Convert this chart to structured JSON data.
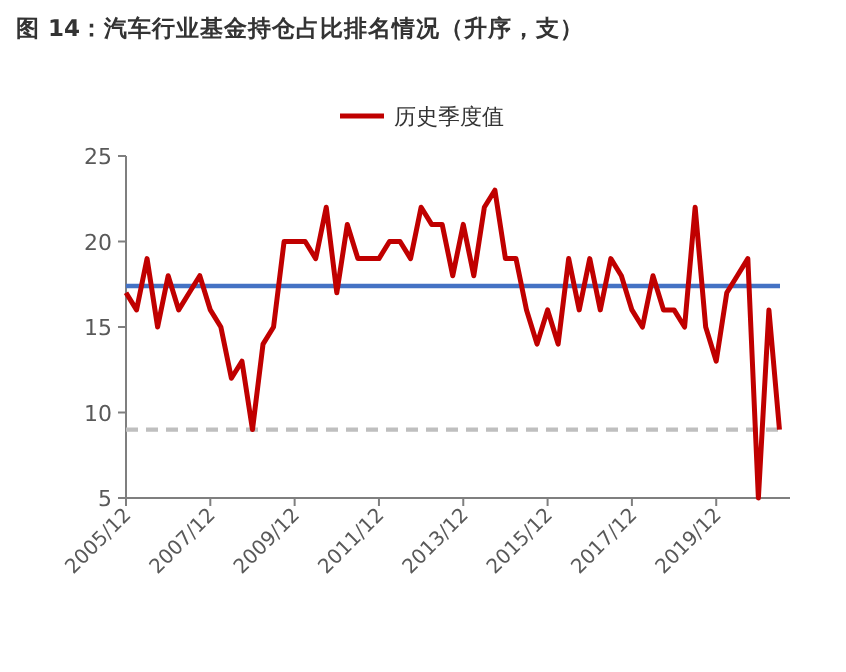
{
  "chart_data": {
    "type": "line",
    "title": "图 14：汽车行业基金持仓占比排名情况（升序，支）",
    "categories": [
      "2005/12",
      null,
      null,
      null,
      null,
      null,
      null,
      null,
      "2007/12",
      null,
      null,
      null,
      null,
      null,
      null,
      null,
      "2009/12",
      null,
      null,
      null,
      null,
      null,
      null,
      null,
      "2011/12",
      null,
      null,
      null,
      null,
      null,
      null,
      null,
      "2013/12",
      null,
      null,
      null,
      null,
      null,
      null,
      null,
      "2015/12",
      null,
      null,
      null,
      null,
      null,
      null,
      null,
      "2017/12",
      null,
      null,
      null,
      null,
      null,
      null,
      null,
      "2019/12",
      null,
      null,
      null,
      null,
      null,
      null
    ],
    "series": [
      {
        "name": "历史季度值",
        "color": "#c00000",
        "values": [
          17,
          16,
          19,
          15,
          18,
          16,
          17,
          18,
          16,
          15,
          12,
          13,
          9,
          14,
          15,
          20,
          20,
          20,
          19,
          22,
          17,
          21,
          19,
          19,
          19,
          20,
          20,
          19,
          22,
          21,
          21,
          18,
          21,
          18,
          22,
          23,
          19,
          19,
          16,
          14,
          16,
          14,
          19,
          16,
          19,
          16,
          19,
          18,
          16,
          15,
          18,
          16,
          16,
          15,
          22,
          15,
          13,
          17,
          18,
          19,
          5,
          16,
          9
        ]
      }
    ],
    "ylim": [
      5,
      25
    ],
    "yticks": [
      5,
      10,
      15,
      20,
      25
    ],
    "grid": false,
    "legend": "top",
    "line_style": "solid",
    "ref_lines": [
      {
        "axis": "y",
        "value": 17.4,
        "color": "#4472c4",
        "line_style": "solid"
      },
      {
        "axis": "y",
        "value": 9,
        "color": "#bfbfbf",
        "line_style": "dashed"
      }
    ]
  }
}
